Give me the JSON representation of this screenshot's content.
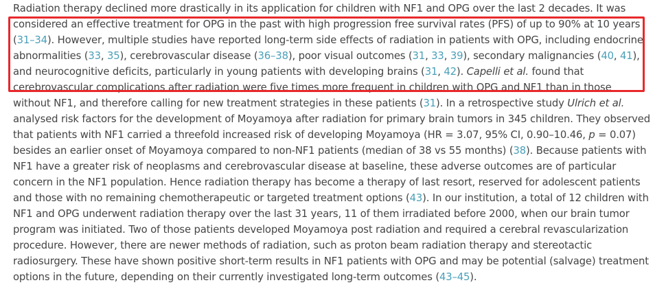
{
  "article": {
    "lines": [
      [
        {
          "t": "Radiation therapy declined more drastically in its application for children with NF1 and OPG over the last 2 decades. It was"
        }
      ],
      [
        {
          "t": "considered an effective treatment for OPG in the past with high progression free survival rates (PFS) of up to 90% at 10 years"
        }
      ],
      [
        {
          "t": "(",
          "k": "text"
        },
        {
          "t": "31–34",
          "k": "ref"
        },
        {
          "t": "). However, multiple studies have reported long-term side effects of radiation in patients with OPG, including endocrine"
        }
      ],
      [
        {
          "t": "abnormalities ("
        },
        {
          "t": "33",
          "k": "ref"
        },
        {
          "t": ", "
        },
        {
          "t": "35",
          "k": "ref"
        },
        {
          "t": "), cerebrovascular disease ("
        },
        {
          "t": "36–38",
          "k": "ref"
        },
        {
          "t": "), poor visual outcomes ("
        },
        {
          "t": "31",
          "k": "ref"
        },
        {
          "t": ", "
        },
        {
          "t": "33",
          "k": "ref"
        },
        {
          "t": ", "
        },
        {
          "t": "39",
          "k": "ref"
        },
        {
          "t": "), secondary malignancies ("
        },
        {
          "t": "40",
          "k": "ref"
        },
        {
          "t": ", "
        },
        {
          "t": "41",
          "k": "ref"
        },
        {
          "t": "),"
        }
      ],
      [
        {
          "t": "and neurocognitive deficits, particularly in young patients with developing brains ("
        },
        {
          "t": "31",
          "k": "ref"
        },
        {
          "t": ", "
        },
        {
          "t": "42",
          "k": "ref"
        },
        {
          "t": "). "
        },
        {
          "t": "Capelli et al.",
          "k": "it"
        },
        {
          "t": " found that"
        }
      ],
      [
        {
          "t": "cerebrovascular complications after radiation were five times more frequent in children with OPG and NF1 than in those"
        }
      ],
      [
        {
          "t": "without NF1, and therefore calling for new treatment strategies in these patients ("
        },
        {
          "t": "31",
          "k": "ref"
        },
        {
          "t": "). In a retrospective study "
        },
        {
          "t": "Ulrich et al.",
          "k": "it"
        }
      ],
      [
        {
          "t": "analysed risk factors for the development of Moyamoya after radiation for primary brain tumors in 345 children. They observed"
        }
      ],
      [
        {
          "t": "that patients with NF1 carried a threefold increased risk of developing Moyamoya (HR = 3.07, 95% CI, 0.90–10.46, "
        },
        {
          "t": "p",
          "k": "it"
        },
        {
          "t": " = 0.07)"
        }
      ],
      [
        {
          "t": "besides an earlier onset of Moyamoya compared to non-NF1 patients (median of 38 vs 55 months) ("
        },
        {
          "t": "38",
          "k": "ref"
        },
        {
          "t": "). Because patients with"
        }
      ],
      [
        {
          "t": "NF1 have a greater risk of neoplasms and cerebrovascular disease at baseline, these adverse outcomes are of particular"
        }
      ],
      [
        {
          "t": "concern in the NF1 population. Hence radiation therapy has become a therapy of last resort, reserved for adolescent patients"
        }
      ],
      [
        {
          "t": "and those with no remaining chemotherapeutic or targeted treatment options ("
        },
        {
          "t": "43",
          "k": "ref"
        },
        {
          "t": "). In our institution, a total of 12 children with"
        }
      ],
      [
        {
          "t": "NF1 and OPG underwent radiation therapy over the last 31 years, 11 of them irradiated before 2000, when our brain tumor"
        }
      ],
      [
        {
          "t": "program was initiated. Two of those patients developed Moyamoya post radiation and required a cerebral revascularization"
        }
      ],
      [
        {
          "t": "procedure. However, there are newer methods of radiation, such as proton beam radiation therapy and stereotactic"
        }
      ],
      [
        {
          "t": "radiosurgery. These have shown positive short-term results in NF1 patients with OPG and may be potential (salvage) treatment"
        }
      ],
      [
        {
          "t": "options in the future, depending on their currently investigated long-term outcomes ("
        },
        {
          "t": "43–45",
          "k": "ref"
        },
        {
          "t": ")."
        }
      ]
    ]
  },
  "colors": {
    "text": "#444444",
    "reference_link": "#4a9fb8",
    "highlight_border": "#e8282c"
  }
}
